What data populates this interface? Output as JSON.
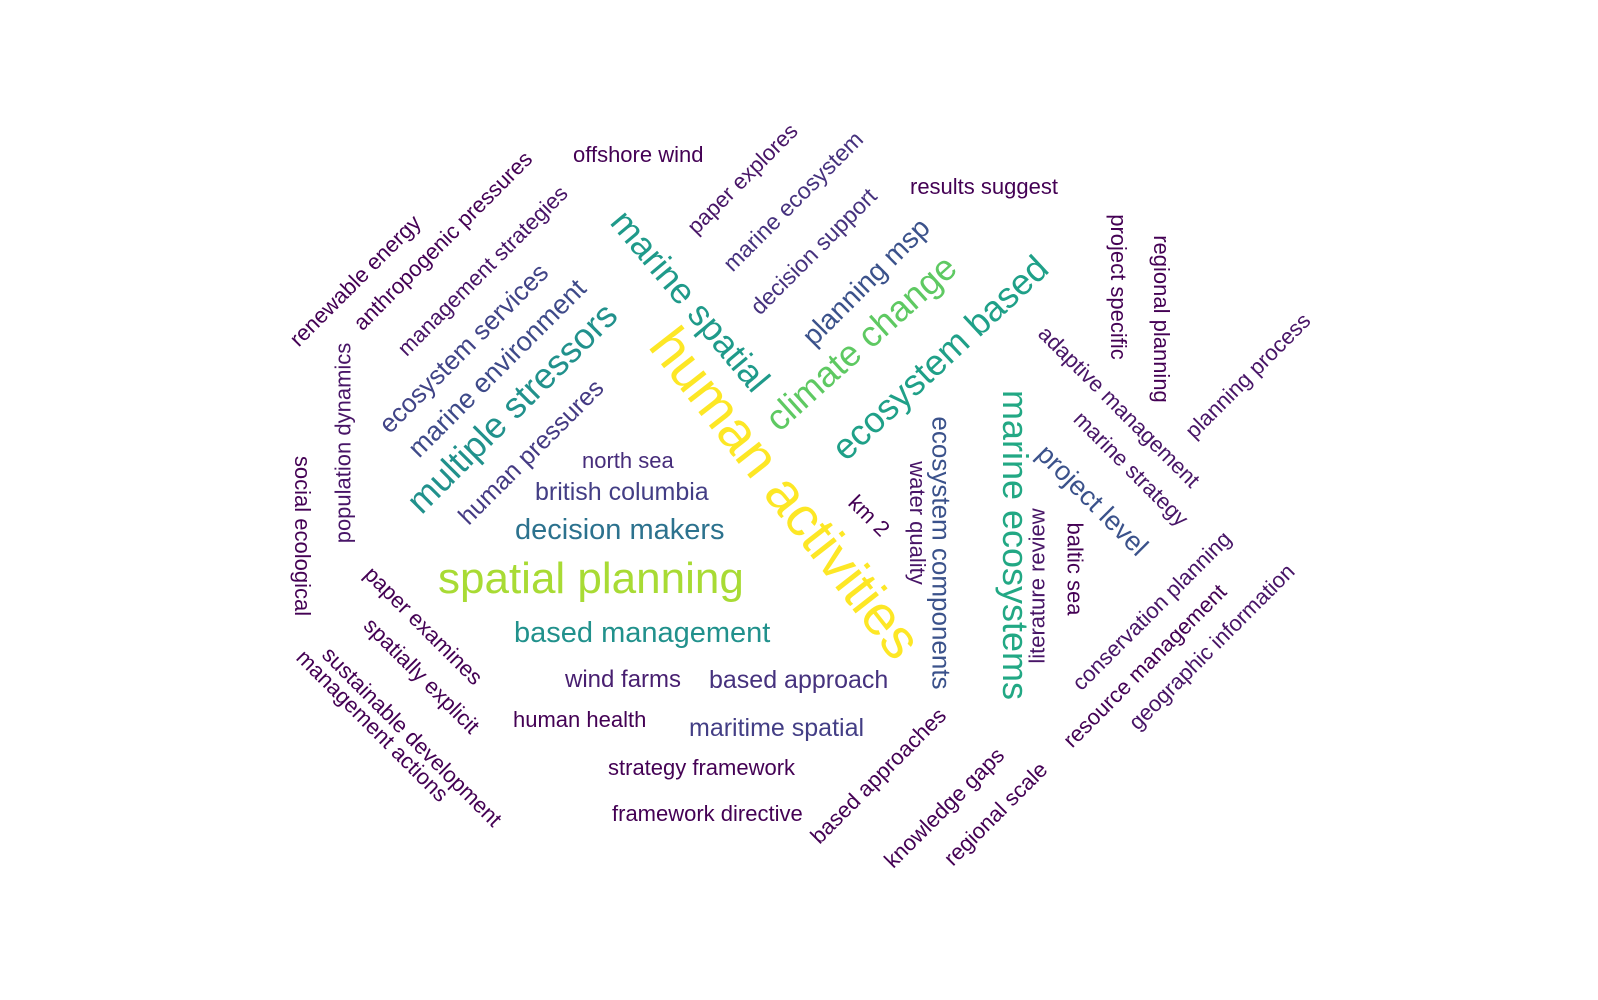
{
  "words": [
    {
      "text": "human activities",
      "color": "#fde725"
    },
    {
      "text": "spatial planning",
      "color": "#a8db34"
    },
    {
      "text": "climate change",
      "color": "#5ec962"
    },
    {
      "text": "marine ecosystems",
      "color": "#22a884"
    },
    {
      "text": "ecosystem based",
      "color": "#1fa088"
    },
    {
      "text": "multiple stressors",
      "color": "#21918c"
    },
    {
      "text": "marine spatial",
      "color": "#1f9a8a"
    },
    {
      "text": "based management",
      "color": "#21918c"
    },
    {
      "text": "decision makers",
      "color": "#2c728e"
    },
    {
      "text": "ecosystem components",
      "color": "#3b528b"
    },
    {
      "text": "planning msp",
      "color": "#3b528b"
    },
    {
      "text": "project level",
      "color": "#3b528b"
    },
    {
      "text": "marine environment",
      "color": "#3e4a89"
    },
    {
      "text": "ecosystem services",
      "color": "#414487"
    },
    {
      "text": "human pressures",
      "color": "#443a83"
    },
    {
      "text": "british columbia",
      "color": "#433e85"
    },
    {
      "text": "north sea",
      "color": "#472d7b"
    },
    {
      "text": "maritime spatial",
      "color": "#433e85"
    },
    {
      "text": "based approach",
      "color": "#46327e"
    },
    {
      "text": "wind farms",
      "color": "#481f70"
    },
    {
      "text": "human health",
      "color": "#440154"
    },
    {
      "text": "strategy framework",
      "color": "#440154"
    },
    {
      "text": "framework directive",
      "color": "#440154"
    },
    {
      "text": "offshore wind",
      "color": "#440154"
    },
    {
      "text": "results suggest",
      "color": "#440154"
    },
    {
      "text": "paper explores",
      "color": "#481567"
    },
    {
      "text": "marine ecosystem",
      "color": "#46327e"
    },
    {
      "text": "decision support",
      "color": "#46327e"
    },
    {
      "text": "anthropogenic pressures",
      "color": "#440154"
    },
    {
      "text": "management strategies",
      "color": "#481567"
    },
    {
      "text": "renewable energy",
      "color": "#440154"
    },
    {
      "text": "population dynamics",
      "color": "#481567"
    },
    {
      "text": "social ecological",
      "color": "#440154"
    },
    {
      "text": "paper examines",
      "color": "#440154"
    },
    {
      "text": "spatially explicit",
      "color": "#440154"
    },
    {
      "text": "sustainable development",
      "color": "#440154"
    },
    {
      "text": "management actions",
      "color": "#440154"
    },
    {
      "text": "km 2",
      "color": "#440154"
    },
    {
      "text": "water quality",
      "color": "#481567"
    },
    {
      "text": "literature review",
      "color": "#481567"
    },
    {
      "text": "baltic sea",
      "color": "#440154"
    },
    {
      "text": "adaptive management",
      "color": "#481567"
    },
    {
      "text": "marine strategy",
      "color": "#481567"
    },
    {
      "text": "project specific",
      "color": "#440154"
    },
    {
      "text": "regional planning",
      "color": "#440154"
    },
    {
      "text": "planning process",
      "color": "#481567"
    },
    {
      "text": "conservation planning",
      "color": "#481567"
    },
    {
      "text": "resource management",
      "color": "#440154"
    },
    {
      "text": "geographic information",
      "color": "#481567"
    },
    {
      "text": "based approaches",
      "color": "#440154"
    },
    {
      "text": "knowledge gaps",
      "color": "#440154"
    },
    {
      "text": "regional scale",
      "color": "#440154"
    }
  ]
}
